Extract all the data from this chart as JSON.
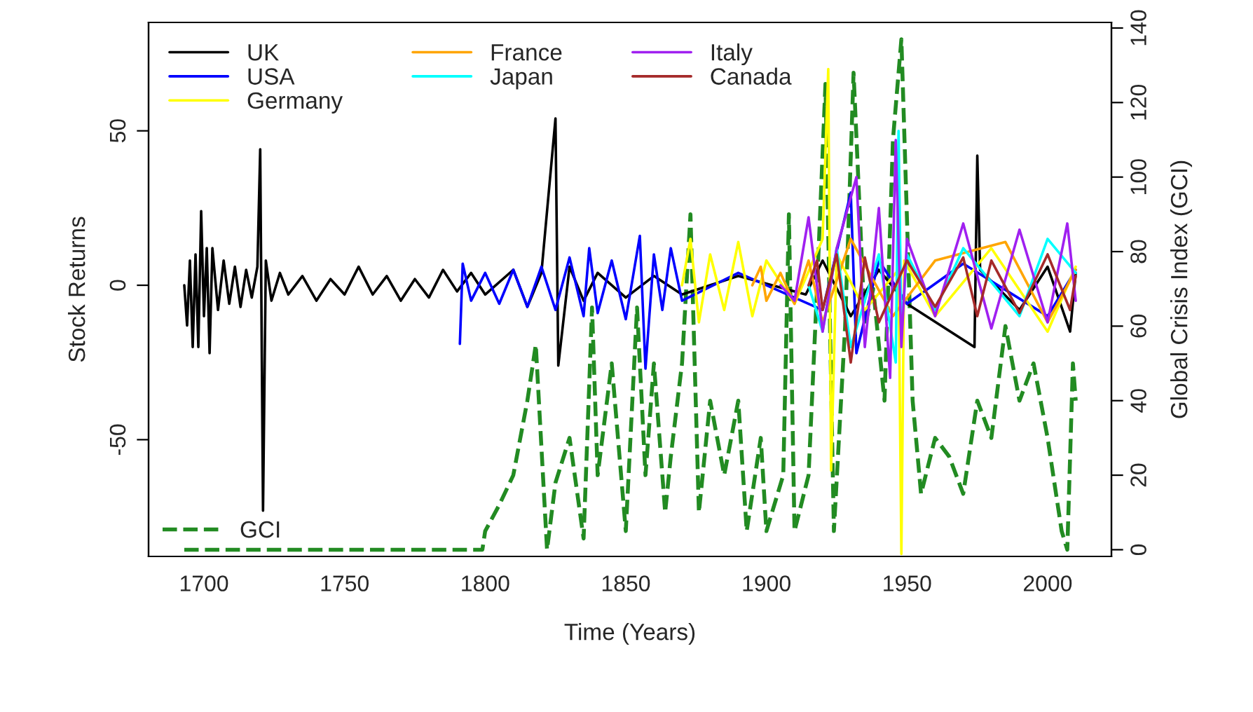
{
  "chart_data": {
    "type": "line",
    "xlabel": "Time (Years)",
    "ylabel": "Stock Returns",
    "y2label": "Global Crisis Index (GCI)",
    "xlim": [
      1680.3,
      2022.7
    ],
    "xticks": [
      1700,
      1750,
      1800,
      1850,
      1900,
      1950,
      2000
    ],
    "ylim": [
      -87.8,
      85.1
    ],
    "yticks": [
      -50,
      0,
      50
    ],
    "y2lim": [
      -1.8,
      141.5
    ],
    "y2ticks": [
      0,
      20,
      40,
      60,
      80,
      100,
      120,
      140
    ],
    "grid": false,
    "legend": "left",
    "marker": "none",
    "series": [
      {
        "name": "UK",
        "color": "#000000",
        "line_style": "solid",
        "x": [
          1693,
          1694,
          1695,
          1696,
          1697,
          1698,
          1699,
          1700,
          1701,
          1702,
          1703,
          1705,
          1707,
          1709,
          1711,
          1713,
          1715,
          1717,
          1719,
          1720,
          1721,
          1722,
          1724,
          1727,
          1730,
          1735,
          1740,
          1745,
          1750,
          1755,
          1760,
          1765,
          1770,
          1775,
          1780,
          1785,
          1790,
          1795,
          1800,
          1810,
          1815,
          1820,
          1825,
          1826,
          1830,
          1835,
          1840,
          1850,
          1860,
          1870,
          1890,
          1914,
          1920,
          1930,
          1940,
          1950,
          1974,
          1975,
          1976,
          1990,
          2000,
          2008,
          2010
        ],
        "values": [
          0,
          -13,
          8,
          -20,
          10,
          -20,
          24,
          -10,
          12,
          -22,
          12,
          -8,
          8,
          -6,
          6,
          -7,
          5,
          -4,
          6,
          44,
          -73,
          8,
          -5,
          4,
          -3,
          3,
          -5,
          2,
          -3,
          6,
          -3,
          3,
          -5,
          2,
          -4,
          5,
          -2,
          4,
          -3,
          5,
          -7,
          4,
          54,
          -26,
          6,
          -5,
          4,
          -4,
          3,
          -3,
          3,
          -3,
          8,
          -10,
          5,
          -6,
          -20,
          42,
          5,
          -8,
          6,
          -15,
          4
        ]
      },
      {
        "name": "USA",
        "color": "#0000ff",
        "line_style": "solid",
        "x": [
          1791,
          1792,
          1795,
          1800,
          1805,
          1810,
          1815,
          1820,
          1825,
          1830,
          1835,
          1837,
          1840,
          1845,
          1850,
          1855,
          1857,
          1860,
          1863,
          1866,
          1870,
          1890,
          1920,
          1930,
          1932,
          1940,
          1950,
          1970,
          2000,
          2010
        ],
        "values": [
          -19,
          7,
          -5,
          4,
          -6,
          5,
          -7,
          6,
          -8,
          9,
          -10,
          12,
          -9,
          8,
          -11,
          16,
          -27,
          10,
          -8,
          12,
          -5,
          4,
          -8,
          30,
          -22,
          8,
          -6,
          7,
          -10,
          5
        ]
      },
      {
        "name": "Germany",
        "color": "#ffff00",
        "line_style": "solid",
        "x": [
          1870,
          1873,
          1876,
          1880,
          1885,
          1890,
          1895,
          1900,
          1910,
          1920,
          1922,
          1923,
          1925,
          1935,
          1947,
          1948,
          1949,
          1960,
          1980,
          2000,
          2010
        ],
        "values": [
          0,
          15,
          -12,
          10,
          -8,
          14,
          -10,
          8,
          -6,
          15,
          70,
          -60,
          10,
          -8,
          5,
          -87,
          8,
          -10,
          12,
          -15,
          6
        ]
      },
      {
        "name": "France",
        "color": "#ffa500",
        "line_style": "solid",
        "x": [
          1895,
          1898,
          1900,
          1905,
          1910,
          1915,
          1920,
          1930,
          1945,
          1960,
          1985,
          2000,
          2010
        ],
        "values": [
          0,
          6,
          -5,
          4,
          -6,
          8,
          -12,
          15,
          -10,
          8,
          14,
          -12,
          5
        ]
      },
      {
        "name": "Japan",
        "color": "#00ffff",
        "line_style": "solid",
        "x": [
          1915,
          1920,
          1925,
          1930,
          1940,
          1946,
          1947,
          1948,
          1950,
          1960,
          1970,
          1990,
          2000,
          2010
        ],
        "values": [
          0,
          -15,
          12,
          -20,
          10,
          -25,
          50,
          -15,
          10,
          -8,
          12,
          -10,
          15,
          4
        ]
      },
      {
        "name": "Italy",
        "color": "#a020f0",
        "line_style": "solid",
        "x": [
          1905,
          1910,
          1915,
          1920,
          1925,
          1932,
          1935,
          1940,
          1944,
          1946,
          1948,
          1950,
          1960,
          1970,
          1980,
          1990,
          2000,
          2007,
          2010
        ],
        "values": [
          0,
          -5,
          22,
          -15,
          12,
          35,
          -20,
          25,
          -30,
          47,
          -20,
          15,
          -10,
          20,
          -14,
          18,
          -12,
          20,
          -5
        ]
      },
      {
        "name": "Canada",
        "color": "#a52a2a",
        "line_style": "solid",
        "x": [
          1915,
          1918,
          1920,
          1925,
          1930,
          1935,
          1940,
          1950,
          1960,
          1970,
          1975,
          1980,
          1990,
          2000,
          2008,
          2010
        ],
        "values": [
          0,
          8,
          -8,
          10,
          -25,
          9,
          -12,
          8,
          -7,
          9,
          -10,
          8,
          -9,
          10,
          -8,
          3
        ]
      },
      {
        "name": "GCI",
        "color": "#228b22",
        "line_style": "dashed",
        "axis": "y2",
        "x": [
          1693,
          1799,
          1800,
          1805,
          1810,
          1815,
          1818,
          1822,
          1825,
          1830,
          1835,
          1838,
          1840,
          1845,
          1850,
          1854,
          1857,
          1860,
          1864,
          1866,
          1870,
          1873,
          1876,
          1880,
          1885,
          1890,
          1893,
          1898,
          1900,
          1906,
          1908,
          1910,
          1915,
          1918,
          1921,
          1924,
          1928,
          1931,
          1935,
          1938,
          1942,
          1945,
          1948,
          1952,
          1955,
          1960,
          1965,
          1970,
          1975,
          1980,
          1985,
          1990,
          1995,
          2000,
          2005,
          2007,
          2009,
          2010
        ],
        "values": [
          0,
          0,
          5,
          12,
          20,
          40,
          55,
          0,
          18,
          30,
          3,
          65,
          20,
          50,
          5,
          65,
          20,
          50,
          10,
          25,
          50,
          90,
          10,
          40,
          20,
          40,
          5,
          30,
          5,
          20,
          90,
          5,
          20,
          70,
          125,
          5,
          60,
          128,
          60,
          70,
          40,
          110,
          137,
          40,
          15,
          30,
          25,
          15,
          40,
          30,
          60,
          40,
          50,
          30,
          5,
          0,
          50,
          40
        ]
      }
    ]
  }
}
